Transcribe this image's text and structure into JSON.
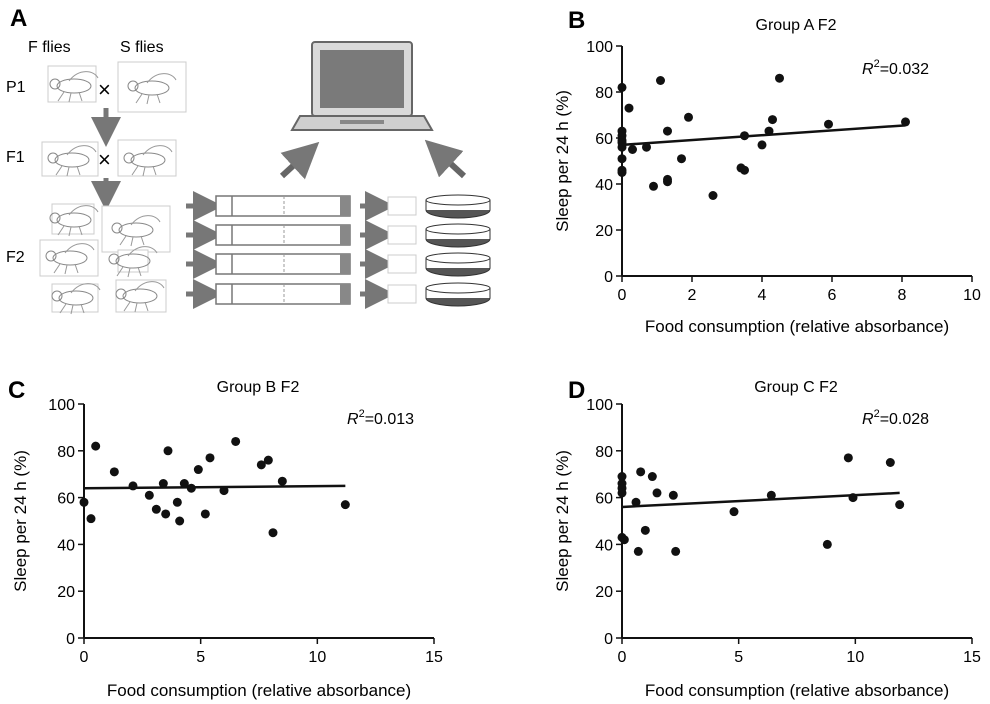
{
  "panel_a": {
    "letter": "A",
    "col_labels": [
      "F flies",
      "S flies"
    ],
    "row_labels": [
      "P1",
      "F1",
      "F2"
    ],
    "cross_symbol": "×",
    "icons": [
      "fly-icon",
      "laptop-icon",
      "activity-tube-icon",
      "petri-dish-icon",
      "arrow-icon"
    ],
    "colors": {
      "arrow": "#777777",
      "dish": "#555555"
    }
  },
  "chart_data": [
    {
      "letter": "B",
      "type": "scatter",
      "title": "Group A F2",
      "xlabel": "Food consumption (relative absorbance)",
      "ylabel": "Sleep per 24 h (%)",
      "r2_symbol": "R",
      "r2_exp": "2",
      "r2_value": "=0.032",
      "xlim": [
        0,
        10
      ],
      "ylim": [
        0,
        100
      ],
      "xticks": [
        0,
        2,
        4,
        6,
        8,
        10
      ],
      "yticks": [
        0,
        20,
        40,
        60,
        80,
        100
      ],
      "grid": false,
      "fit_line": [
        [
          0,
          57
        ],
        [
          8.1,
          65.5
        ]
      ],
      "points": [
        [
          0,
          82
        ],
        [
          0,
          63
        ],
        [
          0,
          61
        ],
        [
          0,
          59
        ],
        [
          0,
          58
        ],
        [
          0,
          56
        ],
        [
          0,
          51
        ],
        [
          0,
          46
        ],
        [
          0,
          45
        ],
        [
          0.2,
          73
        ],
        [
          0.3,
          55
        ],
        [
          0.7,
          56
        ],
        [
          0.9,
          39
        ],
        [
          1.1,
          85
        ],
        [
          1.3,
          63
        ],
        [
          1.3,
          42
        ],
        [
          1.3,
          41
        ],
        [
          1.7,
          51
        ],
        [
          1.9,
          69
        ],
        [
          2.6,
          35
        ],
        [
          3.4,
          47
        ],
        [
          3.5,
          46
        ],
        [
          3.5,
          61
        ],
        [
          4.0,
          57
        ],
        [
          4.2,
          63
        ],
        [
          4.3,
          68
        ],
        [
          4.5,
          86
        ],
        [
          5.9,
          66
        ],
        [
          8.1,
          67
        ]
      ]
    },
    {
      "letter": "C",
      "type": "scatter",
      "title": "Group B F2",
      "xlabel": "Food consumption (relative absorbance)",
      "ylabel": "Sleep per 24 h (%)",
      "r2_symbol": "R",
      "r2_exp": "2",
      "r2_value": "=0.013",
      "xlim": [
        0,
        15
      ],
      "ylim": [
        0,
        100
      ],
      "xticks": [
        0,
        5,
        10,
        15
      ],
      "yticks": [
        0,
        20,
        40,
        60,
        80,
        100
      ],
      "grid": false,
      "fit_line": [
        [
          0,
          64
        ],
        [
          11.2,
          65
        ]
      ],
      "points": [
        [
          0,
          58
        ],
        [
          0.3,
          51
        ],
        [
          0.5,
          82
        ],
        [
          1.3,
          71
        ],
        [
          2.1,
          65
        ],
        [
          2.8,
          61
        ],
        [
          3.1,
          55
        ],
        [
          3.4,
          66
        ],
        [
          3.5,
          53
        ],
        [
          3.6,
          80
        ],
        [
          4.0,
          58
        ],
        [
          4.1,
          50
        ],
        [
          4.3,
          66
        ],
        [
          4.6,
          64
        ],
        [
          4.9,
          72
        ],
        [
          5.2,
          53
        ],
        [
          5.4,
          77
        ],
        [
          6.0,
          63
        ],
        [
          6.5,
          84
        ],
        [
          7.6,
          74
        ],
        [
          7.9,
          76
        ],
        [
          8.1,
          45
        ],
        [
          8.5,
          67
        ],
        [
          11.2,
          57
        ]
      ]
    },
    {
      "letter": "D",
      "type": "scatter",
      "title": "Group C F2",
      "xlabel": "Food consumption (relative absorbance)",
      "ylabel": "Sleep per 24 h (%)",
      "r2_symbol": "R",
      "r2_exp": "2",
      "r2_value": "=0.028",
      "xlim": [
        0,
        15
      ],
      "ylim": [
        0,
        100
      ],
      "xticks": [
        0,
        5,
        10,
        15
      ],
      "yticks": [
        0,
        20,
        40,
        60,
        80,
        100
      ],
      "grid": false,
      "fit_line": [
        [
          0,
          56
        ],
        [
          11.9,
          62
        ]
      ],
      "points": [
        [
          0,
          69
        ],
        [
          0,
          66
        ],
        [
          0,
          64
        ],
        [
          0,
          62
        ],
        [
          0,
          43
        ],
        [
          0.1,
          42
        ],
        [
          0.6,
          58
        ],
        [
          0.7,
          37
        ],
        [
          0.8,
          71
        ],
        [
          1.0,
          46
        ],
        [
          1.3,
          69
        ],
        [
          1.5,
          62
        ],
        [
          2.2,
          61
        ],
        [
          2.3,
          37
        ],
        [
          4.8,
          54
        ],
        [
          6.4,
          61
        ],
        [
          8.8,
          40
        ],
        [
          9.7,
          77
        ],
        [
          9.9,
          60
        ],
        [
          11.5,
          75
        ],
        [
          11.9,
          57
        ]
      ]
    }
  ]
}
